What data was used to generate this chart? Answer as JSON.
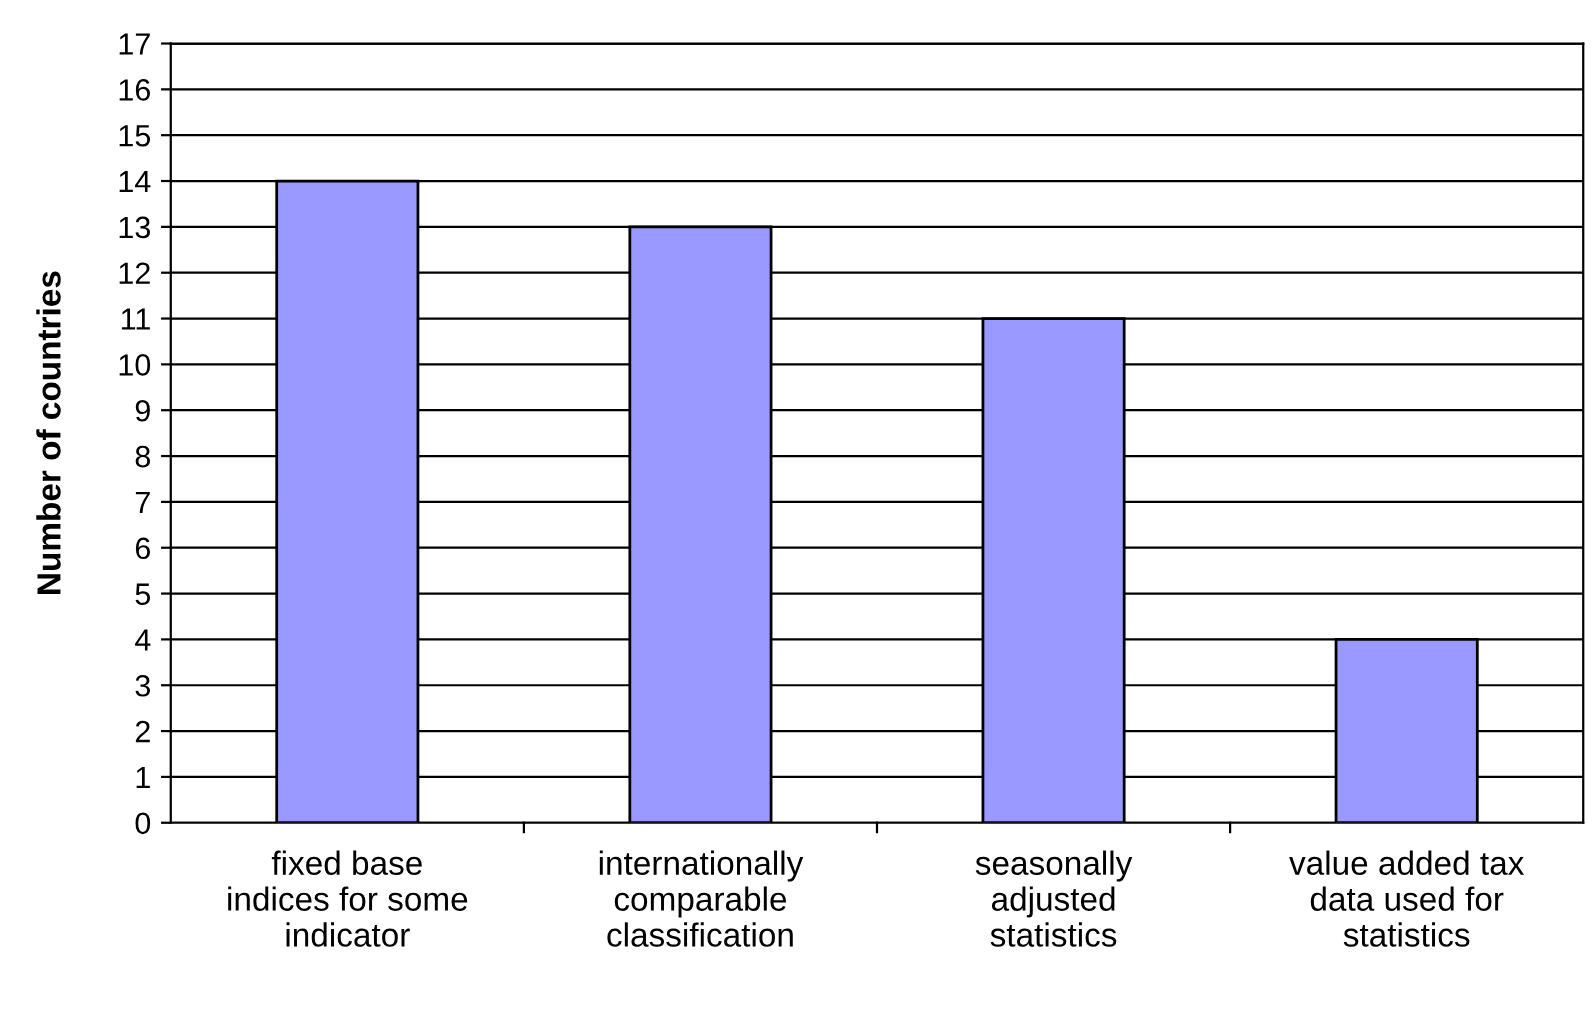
{
  "chart_data": {
    "type": "bar",
    "ylabel": "Number of countries",
    "categories": [
      "fixed base\nindices for some\nindicator",
      "internationally\ncomparable\nclassification",
      "seasonally\nadjusted\nstatistics",
      "value added tax\ndata used for\nstatistics"
    ],
    "values": [
      14,
      13,
      11,
      4
    ],
    "color": "#9999ff",
    "ylim": [
      0,
      17
    ],
    "yticks": [
      0,
      1,
      2,
      3,
      4,
      5,
      6,
      7,
      8,
      9,
      10,
      11,
      12,
      13,
      14,
      15,
      16,
      17
    ],
    "grid": "y",
    "legend": false
  }
}
